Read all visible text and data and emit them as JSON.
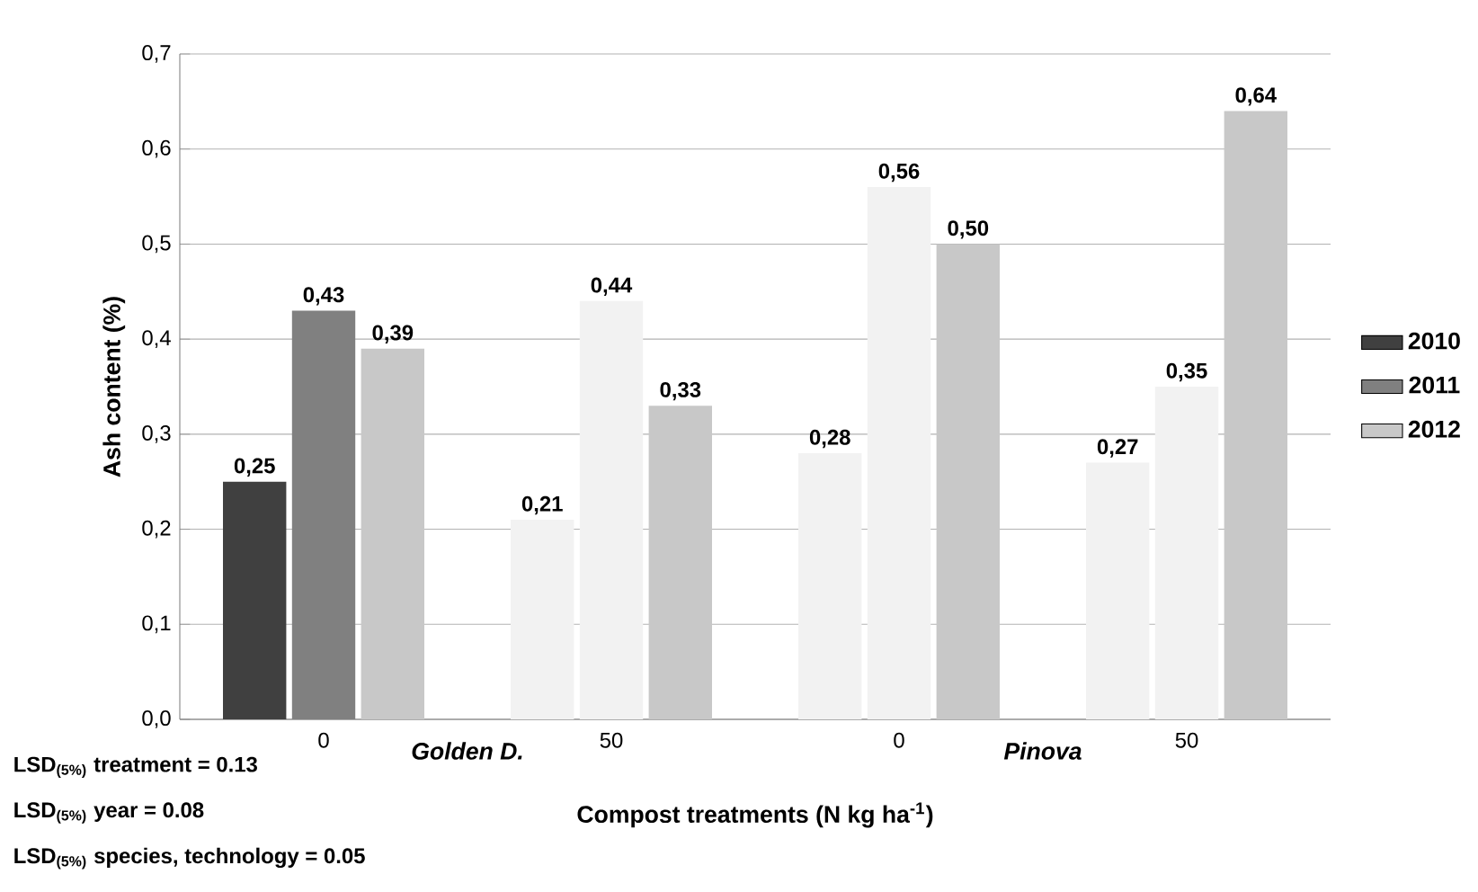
{
  "chart_data": {
    "type": "bar",
    "xlabel": "Compost treatments (N kg ha$^{-1}$)",
    "ylabel": "Ash content (%)",
    "categories": [
      "0",
      "50",
      "0",
      "50"
    ],
    "series": [
      {
        "name": "2010",
        "color": "#404040",
        "colors": [
          "#404040",
          "#f2f2f2",
          "#f2f2f2",
          "#f2f2f2"
        ],
        "values": [
          0.25,
          0.21,
          0.28,
          0.27
        ],
        "value_labels": [
          "0,25",
          "0,21",
          "0,28",
          "0,27"
        ]
      },
      {
        "name": "2011",
        "color": "#808080",
        "colors": [
          "#808080",
          "#f2f2f2",
          "#f2f2f2",
          "#f2f2f2"
        ],
        "values": [
          0.43,
          0.44,
          0.56,
          0.35
        ],
        "value_labels": [
          "0,43",
          "0,44",
          "0,56",
          "0,35"
        ]
      },
      {
        "name": "2012",
        "color": "#c8c8c8",
        "colors": [
          "#c8c8c8",
          "#c8c8c8",
          "#c8c8c8",
          "#c8c8c8"
        ],
        "values": [
          0.39,
          0.33,
          0.5,
          0.64
        ],
        "value_labels": [
          "0,39",
          "0,33",
          "0,50",
          "0,64"
        ]
      }
    ],
    "ylim": [
      0,
      0.7
    ],
    "yticks": [
      {
        "value": 0,
        "label": "0,0"
      },
      {
        "value": 0.1,
        "label": "0,1"
      },
      {
        "value": 0.2,
        "label": "0,2"
      },
      {
        "value": 0.3,
        "label": "0,3"
      },
      {
        "value": 0.4,
        "label": "0,4"
      },
      {
        "value": 0.5,
        "label": "0,5"
      },
      {
        "value": 0.6,
        "label": "0,6"
      },
      {
        "value": 0.7,
        "label": "0,7"
      }
    ],
    "grid": "y",
    "legend": "right",
    "annotations": [
      "*Golden D.*",
      "*Pinova*",
      "LSD$_{(5%)}$ treatment = 0.13",
      "LSD$_{(5%)}$ year = 0.08",
      "LSD$_{(5%)}$ species, technology = 0.05"
    ]
  }
}
